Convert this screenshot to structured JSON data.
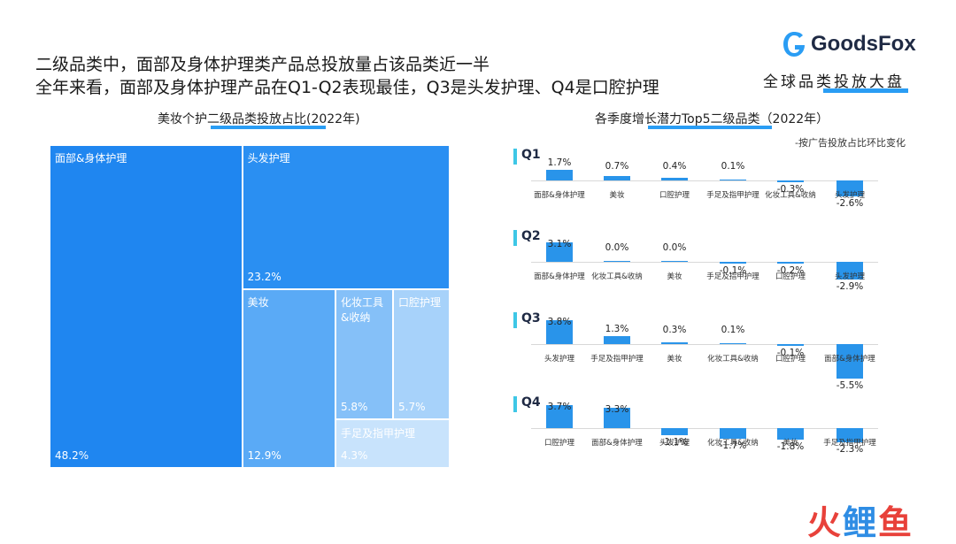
{
  "headline": {
    "line1": "二级品类中，面部及身体护理类产品总投放量占该品类近一半",
    "line2": "全年来看，面部及身体护理产品在Q1-Q2表现最佳，Q3是头发护理、Q4是口腔护理"
  },
  "brand": {
    "name": "GoodsFox",
    "subtitle": "全球品类投放大盘",
    "accent_color": "#2a9df4",
    "logo_icon": "goodsfox-logo-icon"
  },
  "watermark": {
    "text": "火鲤鱼",
    "colors": [
      "#e8413a",
      "#2f8de4"
    ]
  },
  "chart_data": [
    {
      "type": "treemap",
      "title": "美妆个护二级品类投放占比(2022年)",
      "items": [
        {
          "name": "面部&身体护理",
          "value": 48.2,
          "label": "48.2%",
          "color": "#1f86f0"
        },
        {
          "name": "头发护理",
          "value": 23.2,
          "label": "23.2%",
          "color": "#2a8ff2"
        },
        {
          "name": "美妆",
          "value": 12.9,
          "label": "12.9%",
          "color": "#5aaaf6"
        },
        {
          "name": "化妆工具&收纳",
          "value": 5.8,
          "label": "5.8%",
          "color": "#85c0f8"
        },
        {
          "name": "口腔护理",
          "value": 5.7,
          "label": "5.7%",
          "color": "#a7d2fa"
        },
        {
          "name": "手足及指甲护理",
          "value": 4.3,
          "label": "4.3%",
          "color": "#c8e3fc"
        }
      ]
    },
    {
      "type": "bar",
      "title": "各季度增长潜力Top5二级品类（2022年）",
      "note": "-按广告投放占比环比变化",
      "unit": "%",
      "panels": [
        {
          "quarter": "Q1",
          "categories": [
            "面部&身体护理",
            "美妆",
            "口腔护理",
            "手足及指甲护理",
            "化妆工具&收纳",
            "头发护理"
          ],
          "values": [
            1.7,
            0.7,
            0.4,
            0.1,
            -0.3,
            -2.6
          ],
          "labels": [
            "1.7%",
            "0.7%",
            "0.4%",
            "0.1%",
            "-0.3%",
            "-2.6%"
          ]
        },
        {
          "quarter": "Q2",
          "categories": [
            "面部&身体护理",
            "化妆工具&收纳",
            "美妆",
            "手足及指甲护理",
            "口腔护理",
            "头发护理"
          ],
          "values": [
            3.1,
            0.0,
            0.0,
            -0.1,
            -0.2,
            -2.9
          ],
          "labels": [
            "3.1%",
            "0.0%",
            "0.0%",
            "-0.1%",
            "-0.2%",
            "-2.9%"
          ]
        },
        {
          "quarter": "Q3",
          "categories": [
            "头发护理",
            "手足及指甲护理",
            "美妆",
            "化妆工具&收纳",
            "口腔护理",
            "面部&身体护理"
          ],
          "values": [
            3.8,
            1.3,
            0.3,
            0.1,
            -0.1,
            -5.5
          ],
          "labels": [
            "3.8%",
            "1.3%",
            "0.3%",
            "0.1%",
            "-0.1%",
            "-5.5%"
          ]
        },
        {
          "quarter": "Q4",
          "categories": [
            "口腔护理",
            "面部&身体护理",
            "头发护理",
            "化妆工具&收纳",
            "美妆",
            "手足及指甲护理"
          ],
          "values": [
            3.7,
            3.3,
            -1.1,
            -1.7,
            -1.8,
            -2.3
          ],
          "labels": [
            "3.7%",
            "3.3%",
            "-1.1%",
            "-1.7%",
            "-1.8%",
            "-2.3%"
          ]
        }
      ]
    }
  ]
}
